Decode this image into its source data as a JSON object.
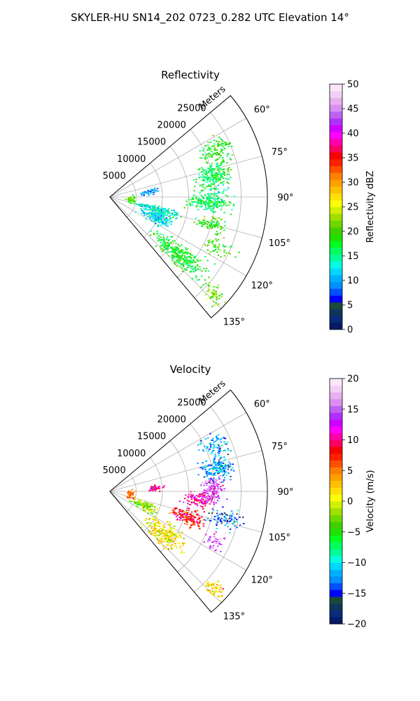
{
  "figure": {
    "title": "SKYLER-HU  SN14_202  0723_0.282 UTC Elevation 14°"
  },
  "chart_data": [
    {
      "type": "polar-sector",
      "title": "Reflectivity",
      "radial_axis_label": "Meters",
      "theta_range_deg": [
        50,
        140
      ],
      "r_max": 30000,
      "r_ticks": [
        5000,
        10000,
        15000,
        20000,
        25000
      ],
      "r_tick_labels": [
        "5000",
        "10000",
        "15000",
        "20000",
        "25000"
      ],
      "theta_ticks": [
        60,
        75,
        90,
        105,
        120,
        135
      ],
      "theta_tick_labels": [
        "60°",
        "75°",
        "90°",
        "105°",
        "120°",
        "135°"
      ],
      "grid": true,
      "colorbar": {
        "label": "Reflectivity dBZ",
        "min": 0,
        "max": 50,
        "ticks": [
          0,
          5,
          10,
          15,
          20,
          25,
          30,
          35,
          40,
          45,
          50
        ],
        "tick_labels": [
          "0",
          "5",
          "10",
          "15",
          "20",
          "25",
          "30",
          "35",
          "40",
          "45",
          "50"
        ],
        "colors": [
          "#061a66",
          "#0a2a7a",
          "#12345a",
          "#1b4a3a",
          "#0000ff",
          "#0050ff",
          "#0090ff",
          "#00b0ff",
          "#00d8ff",
          "#00ffe0",
          "#00ff99",
          "#00ff60",
          "#00ff20",
          "#20e000",
          "#40d000",
          "#70d800",
          "#a0e000",
          "#d0f000",
          "#ffff00",
          "#ffe000",
          "#ffc000",
          "#ffa000",
          "#ff8000",
          "#ff5000",
          "#ff2000",
          "#ff0000",
          "#ff0060",
          "#ff00aa",
          "#ff00ff",
          "#d000ff",
          "#b030ff",
          "#c060f0",
          "#d890f0",
          "#e8b0f0",
          "#f2d0f5",
          "#fae8fa"
        ]
      },
      "echo_regions": [
        {
          "theta": 130,
          "r": 17000,
          "dtheta": 6,
          "dr": 6000,
          "n": 320,
          "value": 18
        },
        {
          "theta": 112,
          "r": 9500,
          "dtheta": 8,
          "dr": 3000,
          "n": 180,
          "value": 12
        },
        {
          "theta": 104,
          "r": 9000,
          "dtheta": 4,
          "dr": 4000,
          "n": 120,
          "value": 14
        },
        {
          "theta": 92,
          "r": 19000,
          "dtheta": 6,
          "dr": 4000,
          "n": 220,
          "value": 16
        },
        {
          "theta": 78,
          "r": 20000,
          "dtheta": 6,
          "dr": 3000,
          "n": 200,
          "value": 17
        },
        {
          "theta": 66,
          "r": 22000,
          "dtheta": 6,
          "dr": 3000,
          "n": 120,
          "value": 18
        },
        {
          "theta": 105,
          "r": 20000,
          "dtheta": 4,
          "dr": 3000,
          "n": 90,
          "value": 19
        },
        {
          "theta": 115,
          "r": 23000,
          "dtheta": 4,
          "dr": 3000,
          "n": 50,
          "value": 20
        },
        {
          "theta": 133,
          "r": 27000,
          "dtheta": 3,
          "dr": 2000,
          "n": 60,
          "value": 21
        },
        {
          "theta": 82,
          "r": 7500,
          "dtheta": 4,
          "dr": 2000,
          "n": 40,
          "value": 10
        },
        {
          "theta": 97,
          "r": 3800,
          "dtheta": 10,
          "dr": 700,
          "n": 40,
          "value": 20
        }
      ]
    },
    {
      "type": "polar-sector",
      "title": "Velocity",
      "radial_axis_label": "Meters",
      "theta_range_deg": [
        50,
        140
      ],
      "r_max": 30000,
      "r_ticks": [
        5000,
        10000,
        15000,
        20000,
        25000
      ],
      "r_tick_labels": [
        "5000",
        "10000",
        "15000",
        "20000",
        "25000"
      ],
      "theta_ticks": [
        60,
        75,
        90,
        105,
        120,
        135
      ],
      "theta_tick_labels": [
        "60°",
        "75°",
        "90°",
        "105°",
        "120°",
        "135°"
      ],
      "grid": true,
      "colorbar": {
        "label": "Velocity (m/s)",
        "min": -20,
        "max": 20,
        "ticks": [
          -20,
          -15,
          -10,
          -5,
          0,
          5,
          10,
          15,
          20
        ],
        "tick_labels": [
          "−20",
          "−15",
          "−10",
          "−5",
          "0",
          "5",
          "10",
          "15",
          "20"
        ],
        "colors": [
          "#061a66",
          "#0a2a7a",
          "#12345a",
          "#1b4a3a",
          "#0000ff",
          "#0050ff",
          "#0090ff",
          "#00b0ff",
          "#00d8ff",
          "#00ffe0",
          "#00ff99",
          "#00ff60",
          "#00ff20",
          "#20e000",
          "#40d000",
          "#70d800",
          "#a0e000",
          "#d0f000",
          "#ffff00",
          "#ffe000",
          "#ffc000",
          "#ffa000",
          "#ff8000",
          "#ff5000",
          "#ff2000",
          "#ff0000",
          "#ff0060",
          "#ff00aa",
          "#ff00ff",
          "#d000ff",
          "#b030ff",
          "#c060f0",
          "#d890f0",
          "#e8b0f0",
          "#f2d0f5",
          "#fae8fa"
        ]
      },
      "echo_regions": [
        {
          "theta": 128,
          "r": 13000,
          "dtheta": 8,
          "dr": 4000,
          "n": 260,
          "value": 1
        },
        {
          "theta": 112,
          "r": 7000,
          "dtheta": 6,
          "dr": 2500,
          "n": 120,
          "value": -2
        },
        {
          "theta": 108,
          "r": 15500,
          "dtheta": 5,
          "dr": 3000,
          "n": 160,
          "value": 8
        },
        {
          "theta": 95,
          "r": 17000,
          "dtheta": 5,
          "dr": 3000,
          "n": 120,
          "value": 11
        },
        {
          "theta": 88,
          "r": 19500,
          "dtheta": 6,
          "dr": 2000,
          "n": 150,
          "value": 14
        },
        {
          "theta": 78,
          "r": 21000,
          "dtheta": 6,
          "dr": 3000,
          "n": 160,
          "value": -12
        },
        {
          "theta": 66,
          "r": 22000,
          "dtheta": 6,
          "dr": 3000,
          "n": 80,
          "value": -12
        },
        {
          "theta": 103,
          "r": 22500,
          "dtheta": 5,
          "dr": 3000,
          "n": 80,
          "value": -13
        },
        {
          "theta": 115,
          "r": 22000,
          "dtheta": 4,
          "dr": 2000,
          "n": 40,
          "value": 14
        },
        {
          "theta": 133,
          "r": 27000,
          "dtheta": 3,
          "dr": 2000,
          "n": 60,
          "value": 2
        },
        {
          "theta": 85,
          "r": 8500,
          "dtheta": 4,
          "dr": 1500,
          "n": 40,
          "value": 10
        },
        {
          "theta": 97,
          "r": 3800,
          "dtheta": 10,
          "dr": 700,
          "n": 40,
          "value": 6
        }
      ]
    }
  ]
}
